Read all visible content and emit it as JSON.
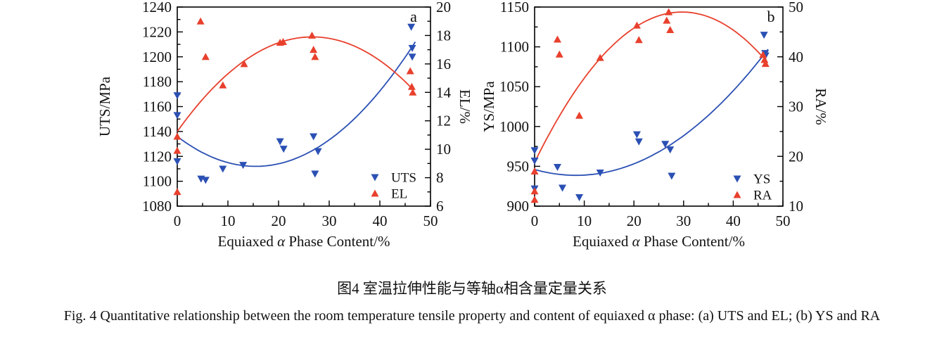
{
  "figure": {
    "caption_zh": "图4 室温拉伸性能与等轴α相含量定量关系",
    "caption_en": "Fig. 4  Quantitative relationship between the room temperature tensile property and content of equiaxed α phase: (a) UTS and EL; (b) YS and RA"
  },
  "colors": {
    "blue": "#2b50b4",
    "red": "#e8402d",
    "axis": "#000000",
    "text": "#111111",
    "corner_label": "#22366e"
  },
  "chart_data": [
    {
      "id": "a",
      "type": "scatter",
      "corner_label": "a",
      "xlabel": "Equiaxed α Phase Content/%",
      "xlim": [
        0,
        50
      ],
      "x_major_ticks": [
        0,
        10,
        20,
        30,
        40,
        50
      ],
      "x_minor_step": 5,
      "left_axis": {
        "label": "UTS/MPa",
        "lim": [
          1080,
          1240
        ],
        "major_ticks": [
          1080,
          1100,
          1120,
          1140,
          1160,
          1180,
          1200,
          1220,
          1240
        ],
        "minor_step": 10
      },
      "right_axis": {
        "label": "EL/%",
        "lim": [
          6,
          20
        ],
        "major_ticks": [
          6,
          8,
          10,
          12,
          14,
          16,
          18,
          20
        ],
        "minor_step": 1
      },
      "legend_position": "bottom-right",
      "grid": false,
      "series": [
        {
          "name": "UTS",
          "axis": "left",
          "marker": "triangle-down",
          "color_key": "blue",
          "points": [
            [
              0,
              1169
            ],
            [
              0,
              1153
            ],
            [
              0,
              1116
            ],
            [
              4.7,
              1102
            ],
            [
              5.6,
              1101
            ],
            [
              9,
              1110
            ],
            [
              13,
              1113
            ],
            [
              20.3,
              1132
            ],
            [
              21,
              1126
            ],
            [
              26.9,
              1136
            ],
            [
              27.8,
              1124
            ],
            [
              27.2,
              1106
            ],
            [
              46.2,
              1224
            ],
            [
              46.4,
              1207
            ],
            [
              46.4,
              1200
            ]
          ]
        },
        {
          "name": "EL",
          "axis": "right",
          "marker": "triangle-up",
          "color_key": "red",
          "points": [
            [
              0,
              10.9
            ],
            [
              0,
              9.9
            ],
            [
              0,
              7.0
            ],
            [
              4.6,
              19.0
            ],
            [
              5.6,
              16.5
            ],
            [
              9,
              14.5
            ],
            [
              13.2,
              16.0
            ],
            [
              20.3,
              17.5
            ],
            [
              20.9,
              17.55
            ],
            [
              26.6,
              18.0
            ],
            [
              26.9,
              17.0
            ],
            [
              27.2,
              16.5
            ],
            [
              46,
              15.5
            ],
            [
              46.3,
              14.4
            ],
            [
              46.5,
              14.0
            ]
          ]
        }
      ],
      "fit_curves": [
        {
          "series": "UTS",
          "axis": "left",
          "color_key": "blue",
          "anchors": [
            [
              0,
              1136
            ],
            [
              15,
              1112
            ],
            [
              47,
              1212
            ]
          ]
        },
        {
          "series": "EL",
          "axis": "right",
          "color_key": "red",
          "anchors": [
            [
              0,
              11.25
            ],
            [
              27,
              17.9
            ],
            [
              46,
              14.4
            ]
          ]
        }
      ]
    },
    {
      "id": "b",
      "type": "scatter",
      "corner_label": "b",
      "xlabel": "Equiaxed α Phase Content/%",
      "xlim": [
        0,
        50
      ],
      "x_major_ticks": [
        0,
        10,
        20,
        30,
        40,
        50
      ],
      "x_minor_step": 5,
      "left_axis": {
        "label": "YS/MPa",
        "lim": [
          900,
          1150
        ],
        "major_ticks": [
          900,
          950,
          1000,
          1050,
          1100,
          1150
        ],
        "minor_step": 25
      },
      "right_axis": {
        "label": "RA/%",
        "lim": [
          10,
          50
        ],
        "major_ticks": [
          10,
          20,
          30,
          40,
          50
        ],
        "minor_step": 5
      },
      "legend_position": "bottom-right",
      "grid": false,
      "series": [
        {
          "name": "YS",
          "axis": "left",
          "marker": "triangle-down",
          "color_key": "blue",
          "points": [
            [
              0,
              970
            ],
            [
              0,
              957
            ],
            [
              0,
              922
            ],
            [
              4.6,
              949
            ],
            [
              5.6,
              923
            ],
            [
              9,
              911
            ],
            [
              13.2,
              942
            ],
            [
              20.6,
              990
            ],
            [
              21,
              981
            ],
            [
              26.3,
              978
            ],
            [
              27.3,
              971
            ],
            [
              27.6,
              938
            ],
            [
              46.2,
              1115
            ],
            [
              46.4,
              1092
            ],
            [
              46.5,
              1089
            ]
          ]
        },
        {
          "name": "RA",
          "axis": "right",
          "marker": "triangle-up",
          "color_key": "red",
          "points": [
            [
              0,
              17
            ],
            [
              0,
              13
            ],
            [
              0,
              11.3
            ],
            [
              4.6,
              43.5
            ],
            [
              5,
              40.5
            ],
            [
              9,
              28.2
            ],
            [
              13.2,
              39.8
            ],
            [
              20.6,
              46.3
            ],
            [
              21,
              43.4
            ],
            [
              26.6,
              47.3
            ],
            [
              27,
              49
            ],
            [
              27.3,
              45.4
            ],
            [
              46,
              40.4
            ],
            [
              46.3,
              39.4
            ],
            [
              46.5,
              38.6
            ]
          ]
        }
      ],
      "fit_curves": [
        {
          "series": "YS",
          "axis": "left",
          "color_key": "blue",
          "anchors": [
            [
              0,
              946
            ],
            [
              10,
              939
            ],
            [
              47,
              1097
            ]
          ]
        },
        {
          "series": "RA",
          "axis": "right",
          "color_key": "red",
          "anchors": [
            [
              0,
              18.8
            ],
            [
              28,
              48.9
            ],
            [
              46,
              39.9
            ]
          ]
        }
      ]
    }
  ]
}
